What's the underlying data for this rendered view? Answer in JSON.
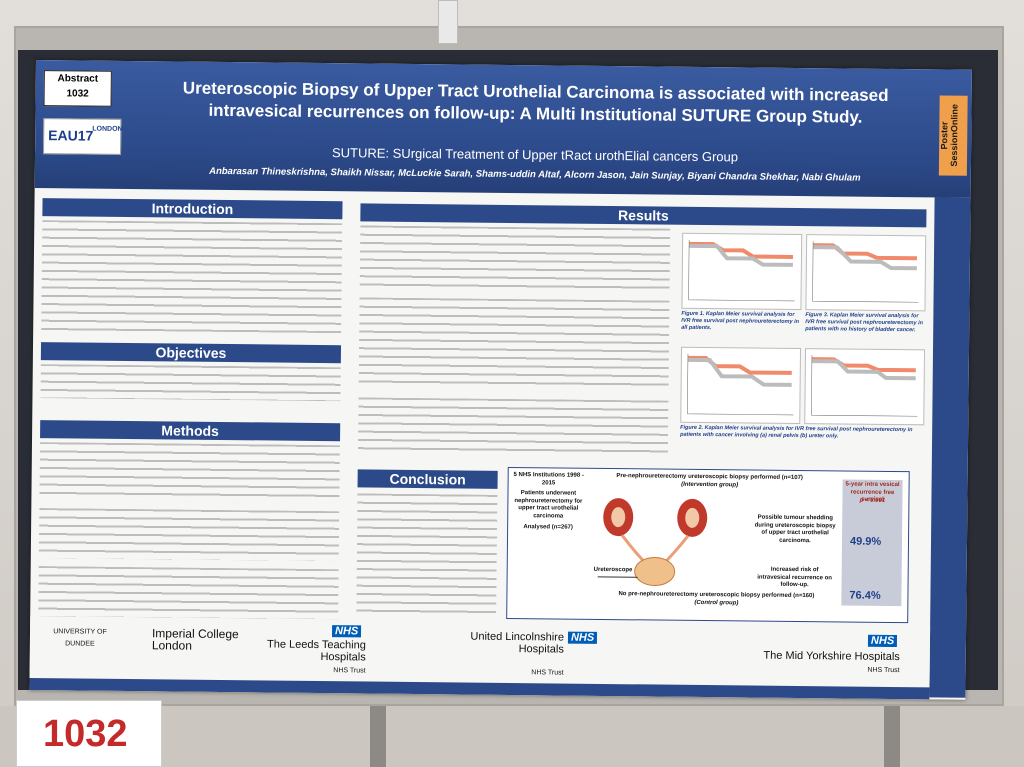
{
  "poster": {
    "abstract_label": "Abstract",
    "abstract_number": "1032",
    "conference_logo": "EAU17",
    "conference_city": "LONDON",
    "title_line1": "Ureteroscopic Biopsy of Upper Tract Urothelial Carcinoma is associated with increased",
    "title_line2": "intravesical recurrences on follow-up: A Multi Institutional SUTURE Group Study.",
    "subtitle": "SUTURE: SUrgical Treatment of Upper tRact urothElial cancers Group",
    "authors": "Anbarasan Thineskrishna, Shaikh Nissar, McLuckie Sarah, Shams-uddin Altaf, Alcorn Jason, Jain Sunjay, Biyani Chandra Shekhar, Nabi Ghulam",
    "session_tab": "Poster SessionOnline"
  },
  "sections": {
    "introduction": "Introduction",
    "objectives": "Objectives",
    "methods": "Methods",
    "results": "Results",
    "conclusion": "Conclusion"
  },
  "figures": {
    "fig1_caption": "Figure 1. Kaplan Meier survival analysis for IVR free survival post nephroureterectomy in all patients.",
    "fig3_caption": "Figure 3. Kaplan Meier survival analysis for IVR free survival post nephroureterectomy in patients with no history of bladder cancer.",
    "fig2_caption": "Figure 2. Kaplan Meier survival analysis for IVR free survival post nephroureterectomy in patients with cancer involving (a) renal pelvis (b) ureter only."
  },
  "diagram": {
    "institutions": "5 NHS Institutions 1998 - 2015",
    "patients": "Patients underwent nephroureterectomy for upper tract urothelial carcinoma",
    "analysed": "Analysed (n=267)",
    "group_top": "Pre-nephroureterectomy ureteroscopic biopsy performed (n=107)",
    "group_top_sub": "(Intervention group)",
    "group_bottom": "No pre-nephroureterectomy ureteroscopic biopsy performed (n=160)",
    "group_bottom_sub": "(Control group)",
    "shedding": "Possible tumour shedding during ureteroscopic biopsy of upper tract urothelial carcinoma.",
    "increased_risk": "Increased risk of intravesical recurrence on follow-up.",
    "ureteroscope": "Ureteroscope",
    "survival_header": "5-year intra vesical recurrence free survival",
    "pvalue": "p < 0.001",
    "pct_top": "49.9%",
    "pct_bottom": "76.4%"
  },
  "logos": {
    "dundee": "UNIVERSITY OF DUNDEE",
    "imperial": "Imperial College London",
    "leeds": "The Leeds Teaching Hospitals",
    "leeds_trust": "NHS Trust",
    "lincoln": "United Lincolnshire Hospitals",
    "lincoln_trust": "NHS Trust",
    "yorkshire": "The Mid Yorkshire Hospitals",
    "yorkshire_trust": "NHS Trust",
    "nhs": "NHS"
  },
  "placard_number": "1032",
  "colors": {
    "poster_blue": "#2c4a8a",
    "accent_orange": "#f0a04b",
    "placard_red": "#c42a2a"
  }
}
